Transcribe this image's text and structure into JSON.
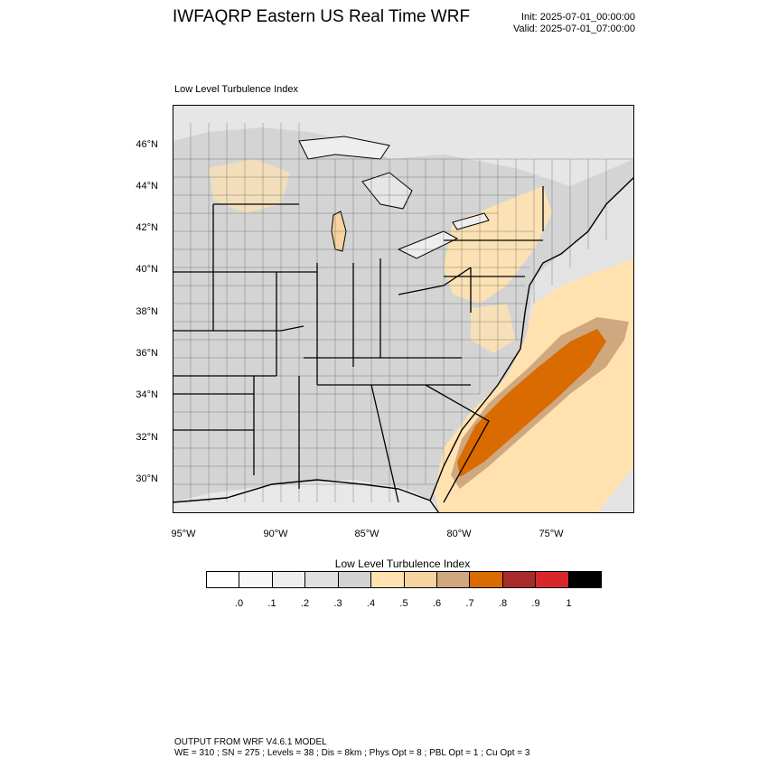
{
  "title": "IWFAQRP Eastern US Real Time WRF",
  "init": "Init: 2025-07-01_00:00:00",
  "valid": "Valid: 2025-07-01_07:00:00",
  "subtitle": "Low Level Turbulence Index",
  "lat_labels": [
    "46°N",
    "44°N",
    "42°N",
    "40°N",
    "38°N",
    "36°N",
    "34°N",
    "32°N",
    "30°N"
  ],
  "lon_labels": [
    "95°W",
    "90°W",
    "85°W",
    "80°W",
    "75°W"
  ],
  "colorbar": {
    "title": "Low Level Turbulence Index",
    "labels": [
      ".0",
      ".1",
      ".2",
      ".3",
      ".4",
      ".5",
      ".6",
      ".7",
      ".8",
      ".9",
      "1"
    ],
    "colors": [
      "#ffffff",
      "#f7f7f7",
      "#eeeeee",
      "#e0e0e0",
      "#d2d2d2",
      "#ffe2b0",
      "#f6d3a0",
      "#cfa87f",
      "#d96b00",
      "#a82a2a",
      "#d8262b",
      "#000000"
    ]
  },
  "footer": {
    "line1": "OUTPUT FROM WRF V4.6.1 MODEL",
    "line2": "WE = 310 ; SN = 275 ; Levels = 38 ; Dis = 8km ; Phys Opt = 8 ; PBL Opt = 1 ; Cu Opt = 3"
  }
}
